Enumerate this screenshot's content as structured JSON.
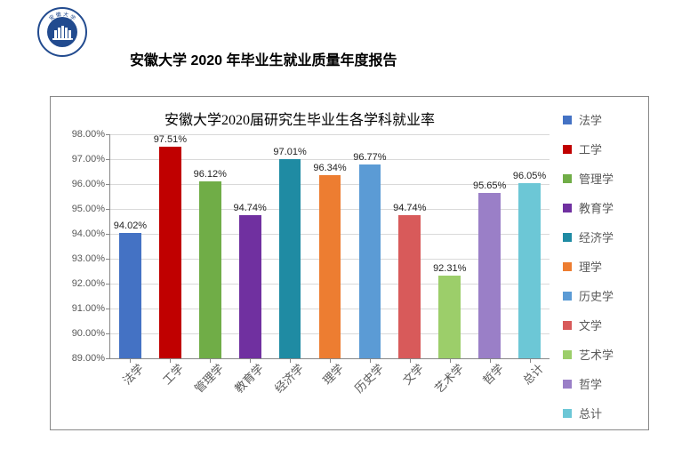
{
  "doc_title": "安徽大学 2020 年毕业生就业质量年度报告",
  "logo": {
    "outer_fill": "#ffffff",
    "ring_stroke": "#224b8f",
    "ring_width": 2,
    "inner_fill": "#224b8f",
    "text_color": "#224b8f",
    "top_text": "安徽大学",
    "bottom_text": "ANHUI UNIVERSITY"
  },
  "chart": {
    "title": "安徽大学2020届研究生毕业生各学科就业率",
    "title_fontsize": 16,
    "background": "#ffffff",
    "frame_border": "#888888",
    "grid_color": "#d9d9d9",
    "axis_color": "#888888",
    "y": {
      "min": 89.0,
      "max": 98.0,
      "step": 1.0,
      "format_suffix": "%",
      "labels": [
        "89.00%",
        "90.00%",
        "91.00%",
        "92.00%",
        "93.00%",
        "94.00%",
        "95.00%",
        "96.00%",
        "97.00%",
        "98.00%"
      ],
      "label_fontsize": 11,
      "label_color": "#595959"
    },
    "categories": [
      "法学",
      "工学",
      "管理学",
      "教育学",
      "经济学",
      "理学",
      "历史学",
      "文学",
      "艺术学",
      "哲学",
      "总计"
    ],
    "values": [
      94.02,
      97.51,
      96.12,
      94.74,
      97.01,
      96.34,
      96.77,
      94.74,
      92.31,
      95.65,
      96.05
    ],
    "value_labels": [
      "94.02%",
      "97.51%",
      "96.12%",
      "94.74%",
      "97.01%",
      "96.34%",
      "96.77%",
      "94.74%",
      "92.31%",
      "95.65%",
      "96.05%"
    ],
    "bar_colors": [
      "#4472c4",
      "#c00000",
      "#70ad47",
      "#7030a0",
      "#1f8ba3",
      "#ed7d31",
      "#5b9bd5",
      "#d85a5a",
      "#9cce6a",
      "#9a7fc7",
      "#6cc7d6"
    ],
    "bar_width_ratio": 0.55,
    "bar_label_fontsize": 11,
    "x_label_fontsize": 13,
    "x_label_color": "#595959",
    "x_label_rotation_deg": -45,
    "legend": {
      "items": [
        "法学",
        "工学",
        "管理学",
        "教育学",
        "经济学",
        "理学",
        "历史学",
        "文学",
        "艺术学",
        "哲学",
        "总计"
      ]
    }
  }
}
